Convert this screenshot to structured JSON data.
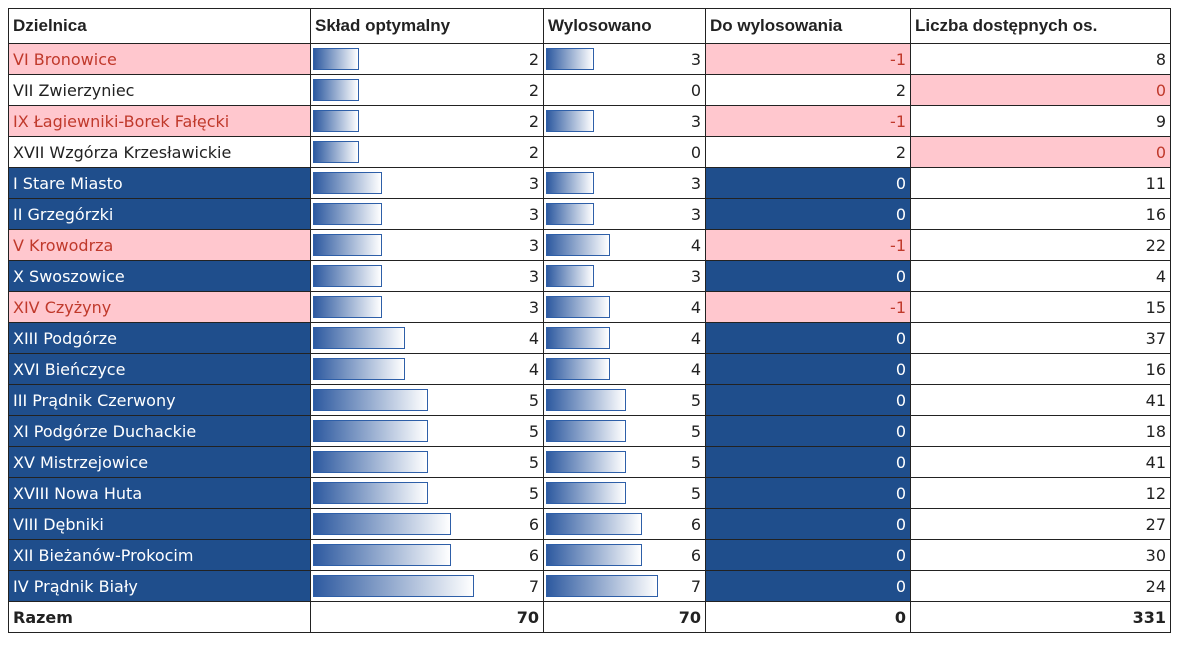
{
  "table": {
    "headers": [
      "Dzielnica",
      "Skład optymalny",
      "Wylosowano",
      "Do wylosowania",
      "Liczba dostępnych os."
    ],
    "rows": [
      [
        "VI Bronowice",
        2,
        3,
        -1,
        8
      ],
      [
        "VII Zwierzyniec",
        2,
        0,
        2,
        0
      ],
      [
        "IX Łagiewniki-Borek Fałęcki",
        2,
        3,
        -1,
        9
      ],
      [
        "XVII Wzgórza Krzesławickie",
        2,
        0,
        2,
        0
      ],
      [
        "I Stare Miasto",
        3,
        3,
        0,
        11
      ],
      [
        "II Grzegórzki",
        3,
        3,
        0,
        16
      ],
      [
        "V Krowodrza",
        3,
        4,
        -1,
        22
      ],
      [
        "X Swoszowice",
        3,
        3,
        0,
        4
      ],
      [
        "XIV Czyżyny",
        3,
        4,
        -1,
        15
      ],
      [
        "XIII Podgórze",
        4,
        4,
        0,
        37
      ],
      [
        "XVI Bieńczyce",
        4,
        4,
        0,
        16
      ],
      [
        "III Prądnik Czerwony",
        5,
        5,
        0,
        41
      ],
      [
        "XI Podgórze Duchackie",
        5,
        5,
        0,
        18
      ],
      [
        "XV Mistrzejowice",
        5,
        5,
        0,
        41
      ],
      [
        "XVIII Nowa Huta",
        5,
        5,
        0,
        12
      ],
      [
        "VIII Dębniki",
        6,
        6,
        0,
        27
      ],
      [
        "XII Bieżanów-Prokocim",
        6,
        6,
        0,
        30
      ],
      [
        "IV Prądnik Biały",
        7,
        7,
        0,
        24
      ]
    ],
    "total": [
      "Razem",
      70,
      70,
      0,
      331
    ]
  }
}
